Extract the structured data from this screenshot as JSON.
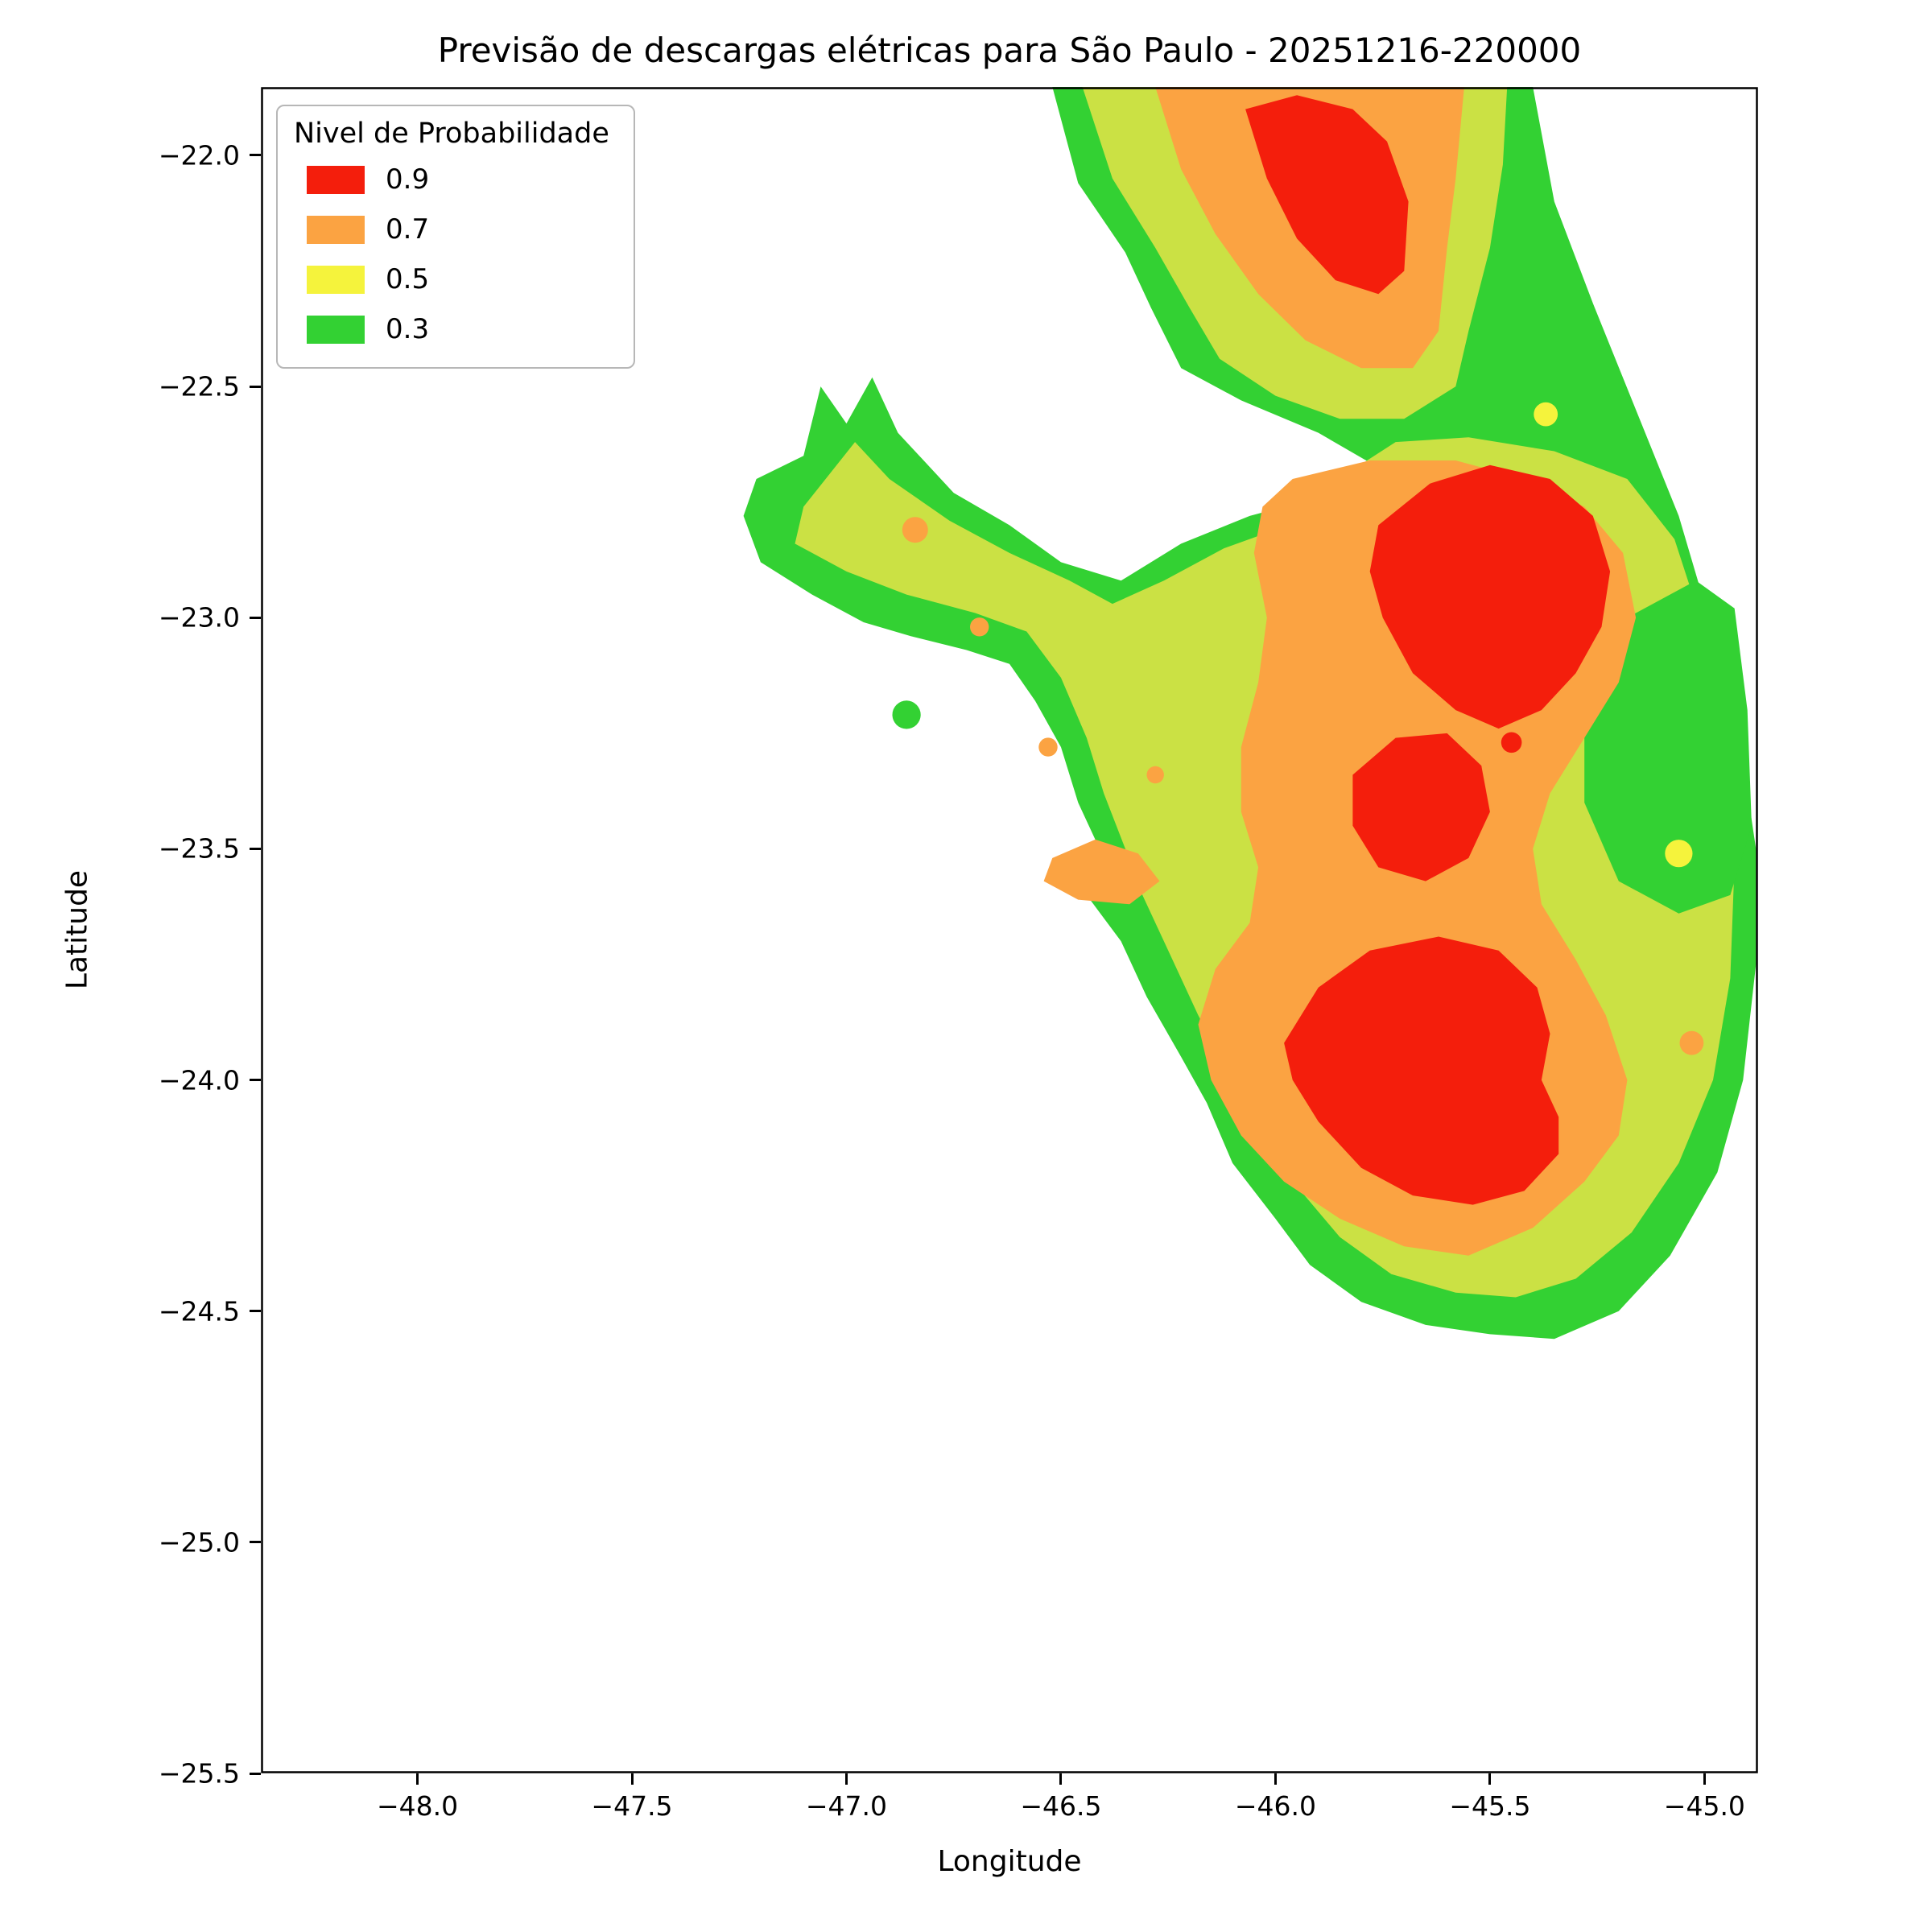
{
  "chart_data": {
    "type": "heatmap",
    "variant": "filled-contour-probability-map",
    "title": "Previsão de descargas elétricas para São Paulo - 20251216-220000",
    "xlabel": "Longitude",
    "ylabel": "Latitude",
    "xlim": [
      -48.365,
      -44.875
    ],
    "ylim": [
      -25.5,
      -21.852
    ],
    "grid": false,
    "xticks": {
      "values": [
        -48.0,
        -47.5,
        -47.0,
        -46.5,
        -46.0,
        -45.5,
        -45.0
      ],
      "labels": [
        "−48.0",
        "−47.5",
        "−47.0",
        "−46.5",
        "−46.0",
        "−45.5",
        "−45.0"
      ]
    },
    "yticks": {
      "values": [
        -22.0,
        -22.5,
        -23.0,
        -23.5,
        -24.0,
        -24.5,
        -25.0,
        -25.5
      ],
      "labels": [
        "−22.0",
        "−22.5",
        "−23.0",
        "−23.5",
        "−24.0",
        "−24.5",
        "−25.0",
        "−25.5"
      ]
    },
    "legend": {
      "title": "Nivel de Probabilidade",
      "position": "upper left",
      "entries": [
        {
          "label": "0.9",
          "color": "#f41e0c"
        },
        {
          "label": "0.7",
          "color": "#fba342"
        },
        {
          "label": "0.5",
          "color": "#f5f33c"
        },
        {
          "label": "0.3",
          "color": "#33d133"
        }
      ]
    },
    "palette": {
      "0.9": "#f41e0c",
      "0.7": "#fba342",
      "0.5": "#cbe144",
      "0.5_bright": "#f5f33c",
      "0.3": "#33d133"
    },
    "regions": [
      {
        "name": "coverage-outline",
        "level": 0.3,
        "color": "0.3",
        "points": [
          [
            -46.52,
            -21.852
          ],
          [
            -46.46,
            -22.06
          ],
          [
            -46.35,
            -22.21
          ],
          [
            -46.29,
            -22.33
          ],
          [
            -46.22,
            -22.46
          ],
          [
            -46.08,
            -22.53
          ],
          [
            -45.9,
            -22.6
          ],
          [
            -45.77,
            -22.67
          ],
          [
            -45.9,
            -22.74
          ],
          [
            -46.06,
            -22.78
          ],
          [
            -46.22,
            -22.84
          ],
          [
            -46.36,
            -22.92
          ],
          [
            -46.5,
            -22.88
          ],
          [
            -46.62,
            -22.8
          ],
          [
            -46.75,
            -22.73
          ],
          [
            -46.88,
            -22.6
          ],
          [
            -46.94,
            -22.48
          ],
          [
            -47.0,
            -22.58
          ],
          [
            -47.06,
            -22.5
          ],
          [
            -47.1,
            -22.65
          ],
          [
            -47.21,
            -22.7
          ],
          [
            -47.24,
            -22.78
          ],
          [
            -47.2,
            -22.88
          ],
          [
            -47.08,
            -22.95
          ],
          [
            -46.96,
            -23.01
          ],
          [
            -46.85,
            -23.04
          ],
          [
            -46.72,
            -23.07
          ],
          [
            -46.62,
            -23.1
          ],
          [
            -46.56,
            -23.18
          ],
          [
            -46.5,
            -23.28
          ],
          [
            -46.46,
            -23.4
          ],
          [
            -46.4,
            -23.52
          ],
          [
            -46.44,
            -23.6
          ],
          [
            -46.36,
            -23.7
          ],
          [
            -46.3,
            -23.82
          ],
          [
            -46.22,
            -23.95
          ],
          [
            -46.16,
            -24.05
          ],
          [
            -46.1,
            -24.18
          ],
          [
            -46.0,
            -24.3
          ],
          [
            -45.92,
            -24.4
          ],
          [
            -45.8,
            -24.48
          ],
          [
            -45.65,
            -24.53
          ],
          [
            -45.5,
            -24.55
          ],
          [
            -45.35,
            -24.56
          ],
          [
            -45.2,
            -24.5
          ],
          [
            -45.08,
            -24.38
          ],
          [
            -44.97,
            -24.2
          ],
          [
            -44.91,
            -24.0
          ],
          [
            -44.88,
            -23.75
          ],
          [
            -44.88,
            -23.5
          ],
          [
            -44.92,
            -23.25
          ],
          [
            -44.99,
            -23.0
          ],
          [
            -45.06,
            -22.78
          ],
          [
            -45.16,
            -22.55
          ],
          [
            -45.26,
            -22.32
          ],
          [
            -45.35,
            -22.1
          ],
          [
            -45.4,
            -21.852
          ]
        ]
      },
      {
        "name": "north-cell-mid",
        "level": 0.5,
        "color": "0.5",
        "points": [
          [
            -46.45,
            -21.852
          ],
          [
            -46.38,
            -22.05
          ],
          [
            -46.28,
            -22.2
          ],
          [
            -46.2,
            -22.33
          ],
          [
            -46.13,
            -22.44
          ],
          [
            -46.0,
            -22.52
          ],
          [
            -45.85,
            -22.57
          ],
          [
            -45.7,
            -22.57
          ],
          [
            -45.58,
            -22.5
          ],
          [
            -45.55,
            -22.38
          ],
          [
            -45.5,
            -22.2
          ],
          [
            -45.47,
            -22.02
          ],
          [
            -45.46,
            -21.852
          ]
        ]
      },
      {
        "name": "main-body-mid",
        "level": 0.5,
        "color": "0.5",
        "points": [
          [
            -45.82,
            -22.68
          ],
          [
            -45.97,
            -22.8
          ],
          [
            -46.12,
            -22.85
          ],
          [
            -46.26,
            -22.92
          ],
          [
            -46.38,
            -22.97
          ],
          [
            -46.48,
            -22.92
          ],
          [
            -46.62,
            -22.86
          ],
          [
            -46.76,
            -22.79
          ],
          [
            -46.9,
            -22.7
          ],
          [
            -46.98,
            -22.62
          ],
          [
            -47.1,
            -22.76
          ],
          [
            -47.12,
            -22.84
          ],
          [
            -47.0,
            -22.9
          ],
          [
            -46.86,
            -22.95
          ],
          [
            -46.7,
            -22.99
          ],
          [
            -46.58,
            -23.03
          ],
          [
            -46.5,
            -23.13
          ],
          [
            -46.44,
            -23.26
          ],
          [
            -46.4,
            -23.38
          ],
          [
            -46.35,
            -23.5
          ],
          [
            -46.31,
            -23.6
          ],
          [
            -46.25,
            -23.72
          ],
          [
            -46.18,
            -23.86
          ],
          [
            -46.11,
            -23.98
          ],
          [
            -46.04,
            -24.1
          ],
          [
            -45.95,
            -24.23
          ],
          [
            -45.85,
            -24.34
          ],
          [
            -45.73,
            -24.42
          ],
          [
            -45.58,
            -24.46
          ],
          [
            -45.44,
            -24.47
          ],
          [
            -45.3,
            -24.43
          ],
          [
            -45.17,
            -24.33
          ],
          [
            -45.06,
            -24.18
          ],
          [
            -44.98,
            -24.0
          ],
          [
            -44.94,
            -23.78
          ],
          [
            -44.93,
            -23.53
          ],
          [
            -44.95,
            -23.28
          ],
          [
            -45.0,
            -23.03
          ],
          [
            -45.07,
            -22.83
          ],
          [
            -45.18,
            -22.7
          ],
          [
            -45.35,
            -22.64
          ],
          [
            -45.55,
            -22.61
          ],
          [
            -45.72,
            -22.62
          ]
        ]
      },
      {
        "name": "east-low-patch",
        "level": 0.3,
        "color": "0.3",
        "points": [
          [
            -45.18,
            -23.0
          ],
          [
            -45.02,
            -22.92
          ],
          [
            -44.93,
            -22.98
          ],
          [
            -44.9,
            -23.2
          ],
          [
            -44.89,
            -23.45
          ],
          [
            -44.94,
            -23.6
          ],
          [
            -45.06,
            -23.64
          ],
          [
            -45.2,
            -23.57
          ],
          [
            -45.28,
            -23.4
          ],
          [
            -45.28,
            -23.22
          ],
          [
            -45.24,
            -23.1
          ]
        ]
      },
      {
        "name": "north-cell-high",
        "level": 0.7,
        "color": "0.7",
        "points": [
          [
            -46.28,
            -21.852
          ],
          [
            -46.22,
            -22.03
          ],
          [
            -46.14,
            -22.17
          ],
          [
            -46.04,
            -22.3
          ],
          [
            -45.93,
            -22.4
          ],
          [
            -45.8,
            -22.46
          ],
          [
            -45.68,
            -22.46
          ],
          [
            -45.62,
            -22.38
          ],
          [
            -45.6,
            -22.2
          ],
          [
            -45.58,
            -22.05
          ],
          [
            -45.56,
            -21.852
          ]
        ]
      },
      {
        "name": "central-high",
        "level": 0.7,
        "color": "0.7",
        "points": [
          [
            -45.96,
            -22.7
          ],
          [
            -45.78,
            -22.66
          ],
          [
            -45.58,
            -22.66
          ],
          [
            -45.42,
            -22.7
          ],
          [
            -45.28,
            -22.76
          ],
          [
            -45.19,
            -22.86
          ],
          [
            -45.16,
            -23.0
          ],
          [
            -45.2,
            -23.14
          ],
          [
            -45.28,
            -23.26
          ],
          [
            -45.36,
            -23.38
          ],
          [
            -45.4,
            -23.5
          ],
          [
            -45.38,
            -23.62
          ],
          [
            -45.3,
            -23.74
          ],
          [
            -45.23,
            -23.86
          ],
          [
            -45.18,
            -24.0
          ],
          [
            -45.2,
            -24.12
          ],
          [
            -45.28,
            -24.22
          ],
          [
            -45.4,
            -24.32
          ],
          [
            -45.55,
            -24.38
          ],
          [
            -45.7,
            -24.36
          ],
          [
            -45.85,
            -24.3
          ],
          [
            -45.98,
            -24.22
          ],
          [
            -46.08,
            -24.12
          ],
          [
            -46.15,
            -24.0
          ],
          [
            -46.18,
            -23.88
          ],
          [
            -46.14,
            -23.76
          ],
          [
            -46.06,
            -23.66
          ],
          [
            -46.04,
            -23.54
          ],
          [
            -46.08,
            -23.42
          ],
          [
            -46.08,
            -23.28
          ],
          [
            -46.04,
            -23.14
          ],
          [
            -46.02,
            -23.0
          ],
          [
            -46.05,
            -22.86
          ],
          [
            -46.03,
            -22.76
          ]
        ]
      },
      {
        "name": "west-high-patch",
        "level": 0.7,
        "color": "0.7",
        "points": [
          [
            -46.52,
            -23.52
          ],
          [
            -46.42,
            -23.48
          ],
          [
            -46.32,
            -23.51
          ],
          [
            -46.27,
            -23.57
          ],
          [
            -46.34,
            -23.62
          ],
          [
            -46.46,
            -23.61
          ],
          [
            -46.54,
            -23.57
          ]
        ]
      },
      {
        "name": "north-core",
        "level": 0.9,
        "color": "0.9",
        "points": [
          [
            -46.07,
            -21.9
          ],
          [
            -46.02,
            -22.05
          ],
          [
            -45.95,
            -22.18
          ],
          [
            -45.86,
            -22.27
          ],
          [
            -45.76,
            -22.3
          ],
          [
            -45.7,
            -22.25
          ],
          [
            -45.69,
            -22.1
          ],
          [
            -45.74,
            -21.97
          ],
          [
            -45.82,
            -21.9
          ],
          [
            -45.95,
            -21.87
          ]
        ]
      },
      {
        "name": "central-core",
        "level": 0.9,
        "color": "0.9",
        "points": [
          [
            -45.76,
            -22.8
          ],
          [
            -45.64,
            -22.71
          ],
          [
            -45.5,
            -22.67
          ],
          [
            -45.36,
            -22.7
          ],
          [
            -45.26,
            -22.78
          ],
          [
            -45.22,
            -22.9
          ],
          [
            -45.24,
            -23.02
          ],
          [
            -45.3,
            -23.12
          ],
          [
            -45.38,
            -23.2
          ],
          [
            -45.48,
            -23.24
          ],
          [
            -45.58,
            -23.2
          ],
          [
            -45.68,
            -23.12
          ],
          [
            -45.75,
            -23.0
          ],
          [
            -45.78,
            -22.9
          ]
        ]
      },
      {
        "name": "mid-core",
        "level": 0.9,
        "color": "0.9",
        "points": [
          [
            -45.82,
            -23.34
          ],
          [
            -45.72,
            -23.26
          ],
          [
            -45.6,
            -23.25
          ],
          [
            -45.52,
            -23.32
          ],
          [
            -45.5,
            -23.42
          ],
          [
            -45.55,
            -23.52
          ],
          [
            -45.65,
            -23.57
          ],
          [
            -45.76,
            -23.54
          ],
          [
            -45.82,
            -23.45
          ]
        ]
      },
      {
        "name": "south-core",
        "level": 0.9,
        "color": "0.9",
        "points": [
          [
            -45.98,
            -23.92
          ],
          [
            -45.9,
            -23.8
          ],
          [
            -45.78,
            -23.72
          ],
          [
            -45.62,
            -23.69
          ],
          [
            -45.48,
            -23.72
          ],
          [
            -45.39,
            -23.8
          ],
          [
            -45.36,
            -23.9
          ],
          [
            -45.38,
            -24.0
          ],
          [
            -45.34,
            -24.08
          ],
          [
            -45.34,
            -24.16
          ],
          [
            -45.42,
            -24.24
          ],
          [
            -45.54,
            -24.27
          ],
          [
            -45.68,
            -24.25
          ],
          [
            -45.8,
            -24.19
          ],
          [
            -45.9,
            -24.09
          ],
          [
            -45.96,
            -24.0
          ]
        ]
      }
    ],
    "spots": [
      {
        "name": "west-low-dot",
        "level": 0.3,
        "color": "0.3",
        "center": [
          -46.86,
          -23.21
        ],
        "r": 0.033
      },
      {
        "name": "wing-high-dot",
        "level": 0.7,
        "color": "0.7",
        "center": [
          -46.84,
          -22.81
        ],
        "r": 0.03
      },
      {
        "name": "west-high-dot-1",
        "level": 0.7,
        "color": "0.7",
        "center": [
          -46.69,
          -23.02
        ],
        "r": 0.022
      },
      {
        "name": "west-high-dot-2",
        "level": 0.7,
        "color": "0.7",
        "center": [
          -46.53,
          -23.28
        ],
        "r": 0.022
      },
      {
        "name": "west-high-dot-3",
        "level": 0.7,
        "color": "0.7",
        "center": [
          -46.28,
          -23.34
        ],
        "r": 0.02
      },
      {
        "name": "ne-yellow-dot",
        "level": 0.5,
        "color": "0.5_bright",
        "center": [
          -45.37,
          -22.56
        ],
        "r": 0.028
      },
      {
        "name": "east-yellow-dot",
        "level": 0.5,
        "color": "0.5_bright",
        "center": [
          -45.06,
          -23.51
        ],
        "r": 0.032
      },
      {
        "name": "se-high-dot",
        "level": 0.7,
        "color": "0.7",
        "center": [
          -45.03,
          -23.92
        ],
        "r": 0.028
      },
      {
        "name": "mid-red-dot",
        "level": 0.9,
        "color": "0.9",
        "center": [
          -45.45,
          -23.27
        ],
        "r": 0.024
      }
    ]
  }
}
